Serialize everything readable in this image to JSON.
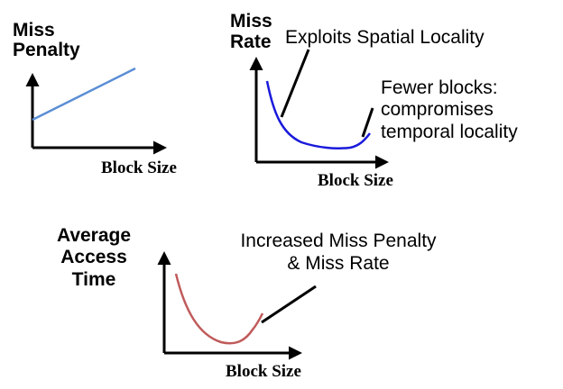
{
  "colors": {
    "penalty_line": "#5b8ed6",
    "miss_rate_curve": "#1a1adb",
    "access_time_curve": "#c05a5a"
  },
  "panel_penalty": {
    "ylabel_line1": "Miss",
    "ylabel_line2": "Penalty",
    "xlabel": "Block Size"
  },
  "panel_miss_rate": {
    "ylabel_line1": "Miss",
    "ylabel_line2": "Rate",
    "xlabel": "Block Size",
    "annotation_spatial": "Exploits Spatial Locality",
    "annotation_temporal_line1": "Fewer blocks:",
    "annotation_temporal_line2": "compromises",
    "annotation_temporal_line3": "temporal locality"
  },
  "panel_access_time": {
    "ylabel_line1": "Average",
    "ylabel_line2": "Access",
    "ylabel_line3": "Time",
    "xlabel": "Block Size",
    "annotation_line1": "Increased Miss Penalty",
    "annotation_line2": "& Miss Rate"
  }
}
